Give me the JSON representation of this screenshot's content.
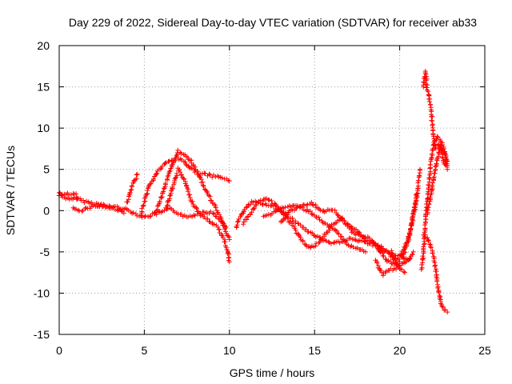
{
  "chart_data": {
    "type": "scatter",
    "title": "Day 229 of 2022, Sidereal Day-to-day VTEC variation (SDTVAR) for receiver ab33",
    "xlabel": "GPS time / hours",
    "ylabel": "SDTVAR / TECUs",
    "xlim": [
      0,
      25
    ],
    "ylim": [
      -15,
      20
    ],
    "xticks": [
      0,
      5,
      10,
      15,
      20,
      25
    ],
    "yticks": [
      -15,
      -10,
      -5,
      0,
      5,
      10,
      15,
      20
    ],
    "grid": true,
    "legend": "none",
    "marker": "+",
    "series": [
      {
        "name": "SDTVAR",
        "color": "#ff0000",
        "tracks": [
          [
            [
              0,
              2.2
            ],
            [
              0.3,
              1.6
            ],
            [
              0.6,
              1.3
            ],
            [
              1.0,
              1.5
            ],
            [
              1.5,
              1.1
            ],
            [
              2.0,
              0.9
            ],
            [
              2.5,
              0.7
            ],
            [
              3.0,
              0.5
            ],
            [
              3.5,
              0.4
            ],
            [
              4.0,
              0.1
            ],
            [
              4.5,
              -0.4
            ],
            [
              5.0,
              -0.8
            ],
            [
              5.5,
              -0.5
            ],
            [
              6.0,
              -0.2
            ],
            [
              6.5,
              0.2
            ],
            [
              7.0,
              -0.3
            ],
            [
              7.5,
              -0.8
            ],
            [
              8.0,
              -0.5
            ],
            [
              8.5,
              -0.1
            ],
            [
              9.0,
              -0.3
            ],
            [
              9.5,
              -1.2
            ],
            [
              9.8,
              -2.5
            ],
            [
              10.0,
              -3.5
            ]
          ],
          [
            [
              0,
              1.8
            ],
            [
              0.5,
              2.0
            ],
            [
              1.0,
              1.9
            ],
            [
              1.1,
              1.5
            ]
          ],
          [
            [
              0.8,
              0.2
            ],
            [
              1.2,
              0.0
            ],
            [
              1.8,
              0.4
            ],
            [
              2.2,
              0.6
            ],
            [
              2.8,
              0.4
            ],
            [
              3.4,
              0.2
            ],
            [
              3.8,
              -0.3
            ]
          ],
          [
            [
              4.0,
              1.0
            ],
            [
              4.3,
              3.0
            ],
            [
              4.6,
              4.4
            ]
          ],
          [
            [
              4.8,
              -0.4
            ],
            [
              5.0,
              1.0
            ],
            [
              5.3,
              3.0
            ],
            [
              5.8,
              4.8
            ],
            [
              6.3,
              5.8
            ],
            [
              6.9,
              6.4
            ],
            [
              7.3,
              6.0
            ],
            [
              7.8,
              5.0
            ],
            [
              8.3,
              4.5
            ],
            [
              9.0,
              4.2
            ],
            [
              9.6,
              4.0
            ],
            [
              10.0,
              3.6
            ]
          ],
          [
            [
              5.6,
              -0.5
            ],
            [
              5.9,
              1.0
            ],
            [
              6.2,
              3.0
            ],
            [
              6.6,
              5.2
            ],
            [
              7.0,
              7.2
            ],
            [
              7.4,
              6.8
            ],
            [
              7.8,
              5.8
            ],
            [
              8.2,
              4.3
            ],
            [
              8.6,
              2.5
            ],
            [
              9.0,
              1.0
            ],
            [
              9.4,
              -0.5
            ],
            [
              9.8,
              -2.0
            ]
          ],
          [
            [
              6.3,
              0.3
            ],
            [
              6.6,
              2.5
            ],
            [
              7.0,
              5.0
            ],
            [
              7.4,
              3.5
            ],
            [
              7.8,
              1.0
            ],
            [
              8.3,
              -0.5
            ],
            [
              8.8,
              -1.2
            ],
            [
              9.3,
              -2.0
            ],
            [
              9.7,
              -3.5
            ],
            [
              9.9,
              -5.0
            ],
            [
              10.0,
              -6.2
            ]
          ],
          [
            [
              10.4,
              -2.0
            ],
            [
              10.7,
              -0.5
            ],
            [
              11.0,
              0.5
            ],
            [
              11.5,
              1.2
            ],
            [
              12.0,
              0.8
            ],
            [
              12.5,
              0.5
            ],
            [
              13.0,
              0.0
            ],
            [
              13.5,
              -0.8
            ],
            [
              14.0,
              -1.5
            ],
            [
              14.5,
              -2.4
            ],
            [
              15.0,
              -3.0
            ],
            [
              15.5,
              -3.6
            ],
            [
              16.0,
              -4.0
            ],
            [
              16.5,
              -3.8
            ],
            [
              17.0,
              -3.4
            ],
            [
              17.5,
              -3.6
            ],
            [
              18.0,
              -3.9
            ],
            [
              18.5,
              -4.2
            ],
            [
              19.0,
              -4.8
            ],
            [
              19.5,
              -5.2
            ],
            [
              20.0,
              -5.5
            ],
            [
              20.5,
              -6.0
            ],
            [
              20.8,
              -5.0
            ]
          ],
          [
            [
              10.8,
              -1.5
            ],
            [
              11.2,
              -0.5
            ],
            [
              11.6,
              0.8
            ],
            [
              12.2,
              1.5
            ],
            [
              12.8,
              0.5
            ],
            [
              13.2,
              -0.5
            ],
            [
              13.6,
              -1.5
            ],
            [
              14.0,
              -2.8
            ],
            [
              14.4,
              -4.0
            ],
            [
              14.8,
              -4.5
            ],
            [
              15.2,
              -4.0
            ],
            [
              15.6,
              -3.0
            ],
            [
              16.0,
              -2.0
            ],
            [
              16.5,
              -3.0
            ],
            [
              17.0,
              -4.2
            ],
            [
              17.5,
              -4.6
            ],
            [
              18.0,
              -5.0
            ]
          ],
          [
            [
              12.0,
              -0.8
            ],
            [
              12.6,
              -0.2
            ],
            [
              13.2,
              0.4
            ],
            [
              13.8,
              0.6
            ],
            [
              14.4,
              0.2
            ],
            [
              15.0,
              -0.5
            ],
            [
              15.4,
              -1.2
            ],
            [
              15.8,
              -2.0
            ],
            [
              16.2,
              -1.6
            ],
            [
              16.6,
              -1.0
            ],
            [
              17.0,
              -1.8
            ],
            [
              17.5,
              -2.5
            ],
            [
              18.0,
              -3.5
            ],
            [
              18.5,
              -4.0
            ],
            [
              19.0,
              -4.5
            ],
            [
              19.5,
              -5.5
            ],
            [
              20.0,
              -7.0
            ],
            [
              20.3,
              -7.5
            ]
          ],
          [
            [
              13.0,
              -1.5
            ],
            [
              13.6,
              0.0
            ],
            [
              14.2,
              0.5
            ],
            [
              14.8,
              1.0
            ],
            [
              15.2,
              0.4
            ],
            [
              15.6,
              -0.2
            ],
            [
              16.0,
              0.2
            ],
            [
              16.4,
              -0.5
            ],
            [
              16.8,
              -1.5
            ],
            [
              17.2,
              -2.5
            ],
            [
              17.6,
              -3.0
            ],
            [
              18.0,
              -3.2
            ],
            [
              18.4,
              -3.6
            ],
            [
              18.8,
              -4.8
            ],
            [
              19.2,
              -6.0
            ],
            [
              19.6,
              -6.5
            ],
            [
              20.0,
              -6.2
            ]
          ],
          [
            [
              18.6,
              -6.0
            ],
            [
              18.8,
              -7.0
            ],
            [
              19.0,
              -7.8
            ],
            [
              19.4,
              -7.2
            ],
            [
              19.8,
              -7.0
            ],
            [
              20.2,
              -6.3
            ],
            [
              20.6,
              -5.8
            ]
          ],
          [
            [
              19.5,
              -5.0
            ],
            [
              19.8,
              -6.0
            ],
            [
              20.2,
              -5.6
            ],
            [
              20.6,
              -3.0
            ],
            [
              20.8,
              -0.5
            ],
            [
              21.0,
              1.5
            ],
            [
              21.1,
              3.5
            ],
            [
              21.2,
              5.0
            ]
          ],
          [
            [
              20.0,
              -5.5
            ],
            [
              20.3,
              -4.5
            ],
            [
              20.6,
              -2.5
            ],
            [
              20.9,
              0.5
            ],
            [
              21.0,
              2.0
            ]
          ],
          [
            [
              21.4,
              15.0
            ],
            [
              21.5,
              16.8
            ],
            [
              21.6,
              15.0
            ],
            [
              21.8,
              13.0
            ],
            [
              21.9,
              11.0
            ],
            [
              22.0,
              9.0
            ],
            [
              22.1,
              7.5
            ],
            [
              22.3,
              8.0
            ],
            [
              22.5,
              7.5
            ],
            [
              22.7,
              6.5
            ],
            [
              22.8,
              5.5
            ]
          ],
          [
            [
              21.3,
              -7.0
            ],
            [
              21.4,
              -5.0
            ],
            [
              21.5,
              -2.0
            ],
            [
              21.6,
              1.0
            ],
            [
              21.7,
              3.0
            ],
            [
              21.8,
              5.0
            ],
            [
              21.9,
              7.0
            ],
            [
              22.0,
              8.0
            ],
            [
              22.2,
              9.0
            ],
            [
              22.4,
              8.5
            ],
            [
              22.6,
              7.5
            ],
            [
              22.8,
              6.0
            ]
          ],
          [
            [
              21.6,
              -0.5
            ],
            [
              21.8,
              1.5
            ],
            [
              22.0,
              4.0
            ],
            [
              22.2,
              6.0
            ],
            [
              22.4,
              8.0
            ],
            [
              22.6,
              6.0
            ],
            [
              22.8,
              5.0
            ]
          ],
          [
            [
              21.4,
              -3.0
            ],
            [
              21.6,
              -3.2
            ],
            [
              21.8,
              -4.2
            ],
            [
              22.0,
              -5.5
            ],
            [
              22.1,
              -7.0
            ],
            [
              22.2,
              -8.5
            ],
            [
              22.3,
              -9.8
            ],
            [
              22.4,
              -11.0
            ],
            [
              22.6,
              -12.0
            ],
            [
              22.8,
              -12.3
            ]
          ]
        ]
      }
    ]
  }
}
